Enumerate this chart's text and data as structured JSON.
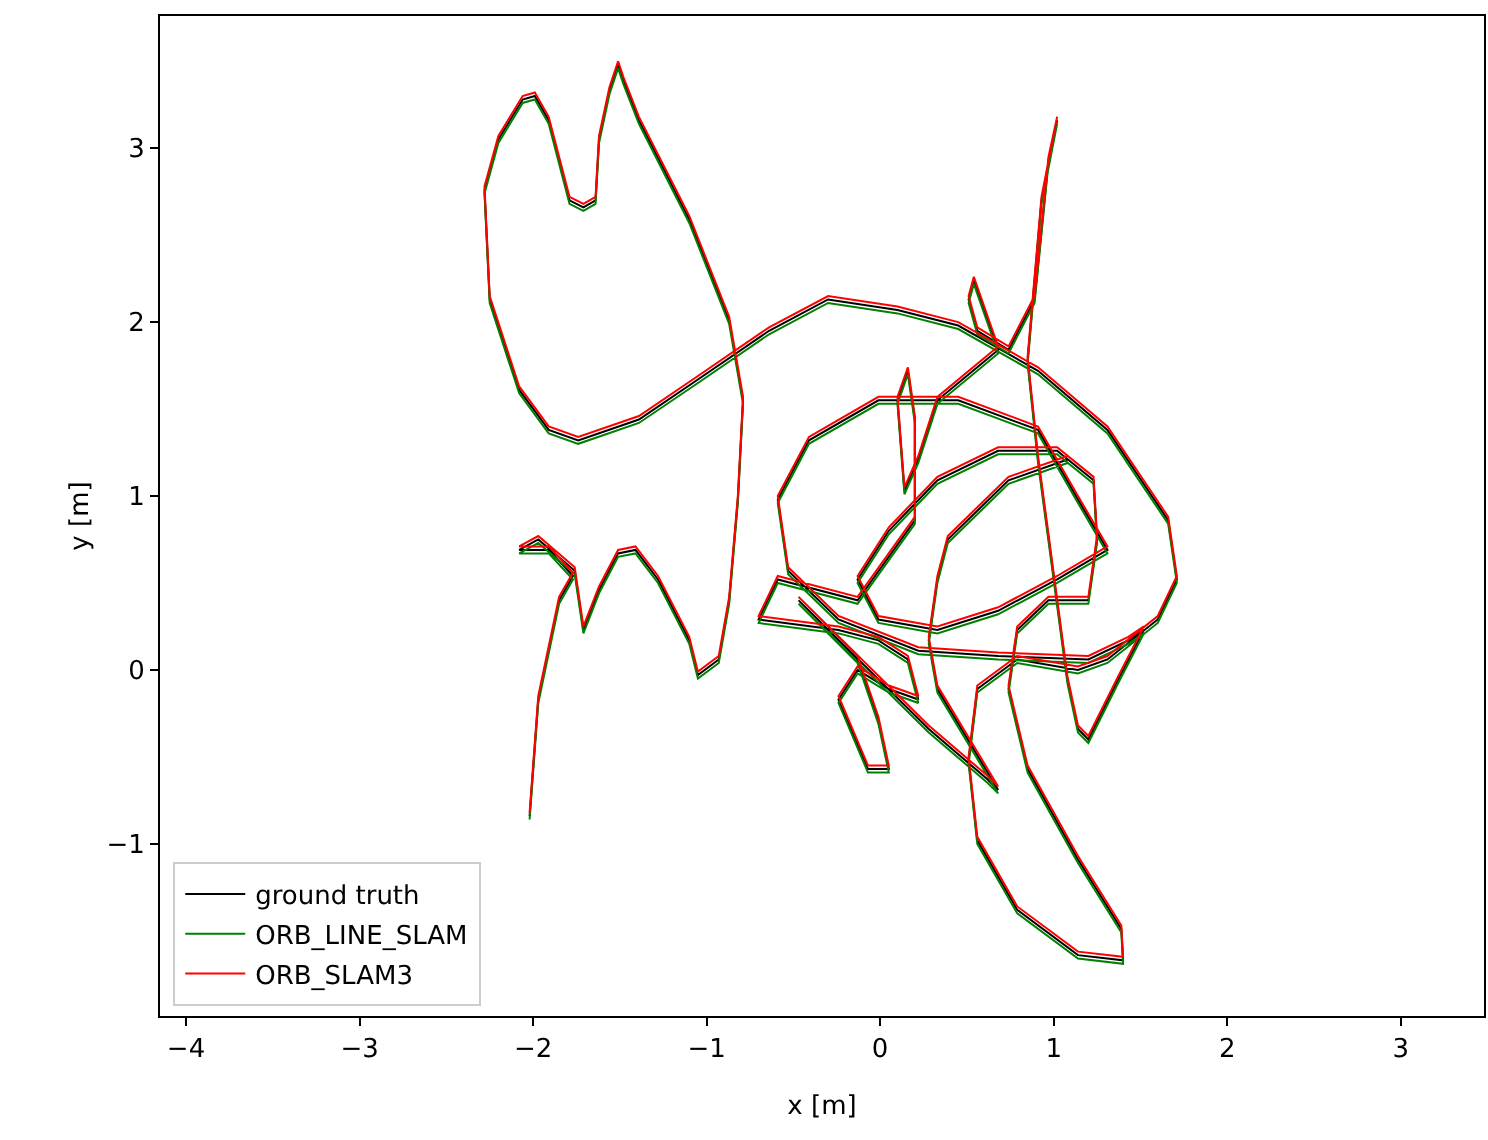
{
  "chart_data": {
    "type": "line",
    "xlabel": "x [m]",
    "ylabel": "y [m]",
    "x": [
      -2.02,
      -1.97,
      -1.85,
      -1.77,
      -1.91,
      -2.08,
      -1.97,
      -1.76,
      -1.71,
      -1.62,
      -1.51,
      -1.41,
      -1.28,
      -1.1,
      -1.05,
      -0.93,
      -0.87,
      -0.82,
      -0.79,
      -0.87,
      -1.1,
      -1.39,
      -1.48,
      -1.51,
      -1.56,
      -1.62,
      -1.64,
      -1.71,
      -1.79,
      -1.91,
      -1.99,
      -2.06,
      -2.2,
      -2.28,
      -2.25,
      -2.08,
      -1.91,
      -1.74,
      -1.39,
      -1.05,
      -0.64,
      -0.3,
      0.1,
      0.45,
      0.91,
      1.31,
      1.66,
      1.71,
      1.6,
      1.31,
      1.14,
      0.79,
      0.56,
      0.51,
      0.56,
      0.79,
      1.14,
      1.4,
      1.39,
      1.14,
      0.85,
      0.74,
      0.79,
      0.97,
      1.2,
      1.25,
      1.23,
      1.02,
      0.68,
      0.33,
      0.05,
      -0.13,
      -0.01,
      0.33,
      0.68,
      1.02,
      1.31,
      1.14,
      0.91,
      0.45,
      -0.01,
      -0.41,
      -0.59,
      -0.53,
      -0.24,
      0.22,
      0.68,
      1.2,
      1.43,
      1.52,
      1.37,
      1.2,
      1.14,
      1.08,
      0.91,
      0.85,
      0.93,
      1.02,
      0.97,
      0.89,
      0.74,
      0.56,
      0.51,
      0.54,
      0.68,
      0.33,
      0.22,
      0.14,
      0.1,
      0.16,
      0.2,
      0.2,
      -0.13,
      -0.59,
      -0.7,
      -0.24,
      -0.01,
      0.16,
      0.22,
      0.05,
      -0.13,
      -0.24,
      -0.07,
      0.05,
      -0.01,
      -0.13,
      -0.47,
      0.28,
      0.62,
      0.68,
      0.33,
      0.28,
      0.33,
      0.39,
      0.74,
      1.08
    ],
    "series": [
      {
        "name": "ground truth",
        "color": "#000000",
        "values": [
          -0.84,
          -0.17,
          0.4,
          0.54,
          0.69,
          0.69,
          0.75,
          0.57,
          0.23,
          0.46,
          0.67,
          0.69,
          0.52,
          0.17,
          -0.03,
          0.06,
          0.4,
          0.98,
          1.55,
          2.01,
          2.59,
          3.16,
          3.39,
          3.48,
          3.33,
          3.05,
          2.7,
          2.66,
          2.7,
          3.16,
          3.3,
          3.28,
          3.05,
          2.76,
          2.13,
          1.61,
          1.38,
          1.32,
          1.44,
          1.67,
          1.95,
          2.13,
          2.07,
          1.98,
          1.72,
          1.38,
          0.86,
          0.52,
          0.29,
          0.06,
          0,
          0.06,
          -0.11,
          -0.52,
          -0.98,
          -1.38,
          -1.64,
          -1.67,
          -1.49,
          -1.09,
          -0.57,
          -0.11,
          0.23,
          0.4,
          0.4,
          0.75,
          1.09,
          1.26,
          1.26,
          1.09,
          0.8,
          0.52,
          0.29,
          0.23,
          0.34,
          0.52,
          0.69,
          0.98,
          1.38,
          1.55,
          1.55,
          1.32,
          0.98,
          0.57,
          0.29,
          0.11,
          0.08,
          0.06,
          0.17,
          0.23,
          -0.06,
          -0.4,
          -0.34,
          -0.06,
          1.21,
          1.78,
          2.7,
          3.16,
          2.93,
          2.13,
          1.84,
          1.95,
          2.13,
          2.24,
          1.84,
          1.55,
          1.21,
          1.03,
          1.55,
          1.72,
          1.44,
          0.86,
          0.4,
          0.52,
          0.29,
          0.23,
          0.17,
          0.06,
          -0.17,
          -0.11,
          0,
          -0.17,
          -0.57,
          -0.57,
          -0.29,
          0.06,
          0.4,
          -0.34,
          -0.63,
          -0.69,
          -0.11,
          0.17,
          0.52,
          0.75,
          1.09,
          1.21
        ]
      },
      {
        "name": "ORB_LINE_SLAM",
        "color": "#008000",
        "values": [
          -0.86,
          -0.19,
          0.38,
          0.52,
          0.67,
          0.67,
          0.73,
          0.55,
          0.21,
          0.44,
          0.65,
          0.67,
          0.5,
          0.15,
          -0.05,
          0.04,
          0.38,
          0.96,
          1.53,
          1.99,
          2.57,
          3.14,
          3.37,
          3.46,
          3.31,
          3.03,
          2.68,
          2.64,
          2.68,
          3.14,
          3.28,
          3.26,
          3.03,
          2.74,
          2.11,
          1.59,
          1.36,
          1.3,
          1.42,
          1.65,
          1.93,
          2.11,
          2.05,
          1.96,
          1.7,
          1.36,
          0.84,
          0.5,
          0.27,
          0.04,
          -0.02,
          0.04,
          -0.13,
          -0.54,
          -1.0,
          -1.4,
          -1.66,
          -1.69,
          -1.51,
          -1.11,
          -0.59,
          -0.13,
          0.21,
          0.38,
          0.38,
          0.73,
          1.07,
          1.24,
          1.24,
          1.07,
          0.78,
          0.5,
          0.27,
          0.21,
          0.32,
          0.5,
          0.67,
          0.96,
          1.36,
          1.53,
          1.53,
          1.3,
          0.96,
          0.55,
          0.27,
          0.09,
          0.06,
          0.04,
          0.15,
          0.21,
          -0.08,
          -0.42,
          -0.36,
          -0.08,
          1.19,
          1.76,
          2.68,
          3.14,
          2.91,
          2.11,
          1.82,
          1.93,
          2.11,
          2.22,
          1.82,
          1.53,
          1.19,
          1.01,
          1.53,
          1.7,
          1.42,
          0.84,
          0.38,
          0.5,
          0.27,
          0.21,
          0.15,
          0.04,
          -0.19,
          -0.13,
          -0.02,
          -0.19,
          -0.59,
          -0.59,
          -0.31,
          0.04,
          0.38,
          -0.36,
          -0.65,
          -0.71,
          -0.13,
          0.15,
          0.5,
          0.73,
          1.07,
          1.19
        ]
      },
      {
        "name": "ORB_SLAM3",
        "color": "#ff0000",
        "values": [
          -0.82,
          -0.15,
          0.42,
          0.56,
          0.71,
          0.71,
          0.77,
          0.59,
          0.25,
          0.48,
          0.69,
          0.71,
          0.54,
          0.19,
          -0.01,
          0.08,
          0.42,
          1.0,
          1.57,
          2.03,
          2.61,
          3.18,
          3.41,
          3.5,
          3.35,
          3.07,
          2.72,
          2.68,
          2.72,
          3.18,
          3.32,
          3.3,
          3.07,
          2.78,
          2.15,
          1.63,
          1.4,
          1.34,
          1.46,
          1.69,
          1.97,
          2.15,
          2.09,
          2.0,
          1.74,
          1.4,
          0.88,
          0.54,
          0.31,
          0.08,
          0.02,
          0.08,
          -0.09,
          -0.5,
          -0.96,
          -1.36,
          -1.62,
          -1.65,
          -1.47,
          -1.07,
          -0.55,
          -0.09,
          0.25,
          0.42,
          0.42,
          0.77,
          1.11,
          1.28,
          1.28,
          1.11,
          0.82,
          0.54,
          0.31,
          0.25,
          0.36,
          0.54,
          0.71,
          1.0,
          1.4,
          1.57,
          1.57,
          1.34,
          1.0,
          0.59,
          0.31,
          0.13,
          0.1,
          0.08,
          0.19,
          0.25,
          -0.04,
          -0.38,
          -0.32,
          -0.04,
          1.23,
          1.8,
          2.72,
          3.18,
          2.95,
          2.15,
          1.86,
          1.97,
          2.15,
          2.26,
          1.86,
          1.57,
          1.23,
          1.05,
          1.57,
          1.74,
          1.46,
          0.88,
          0.42,
          0.54,
          0.31,
          0.25,
          0.19,
          0.08,
          -0.15,
          -0.09,
          0.02,
          -0.15,
          -0.55,
          -0.55,
          -0.27,
          0.08,
          0.42,
          -0.32,
          -0.61,
          -0.67,
          -0.09,
          0.19,
          0.54,
          0.77,
          1.11,
          1.23
        ]
      }
    ],
    "xlim": [
      -4.15,
      3.48
    ],
    "ylim": [
      -1.99,
      3.76
    ],
    "xticks": [
      {
        "value": -4,
        "label": "−4"
      },
      {
        "value": -3,
        "label": "−3"
      },
      {
        "value": -2,
        "label": "−2"
      },
      {
        "value": -1,
        "label": "−1"
      },
      0,
      1,
      2,
      3
    ],
    "yticks": [
      {
        "value": -1,
        "label": "−1"
      },
      0,
      1,
      2,
      3
    ],
    "grid": false,
    "legend": "bottom left",
    "marker": "none",
    "line_style": "solid"
  }
}
